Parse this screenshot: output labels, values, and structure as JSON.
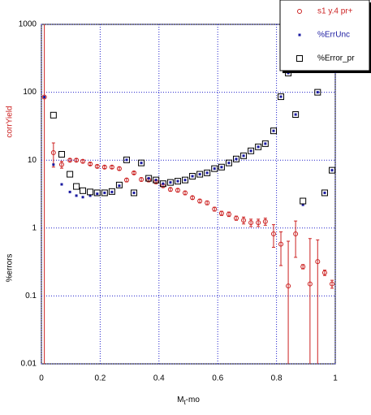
{
  "chart_data": {
    "type": "scatter",
    "xlabel": [
      "M",
      "t",
      "-mo"
    ],
    "ylabels": [
      {
        "text": "corrYield",
        "color": "#cc2222"
      },
      {
        "text": "%errors",
        "color": "#000000"
      }
    ],
    "x": [
      0.01,
      0.041,
      0.069,
      0.097,
      0.119,
      0.141,
      0.166,
      0.19,
      0.215,
      0.24,
      0.265,
      0.29,
      0.315,
      0.34,
      0.365,
      0.39,
      0.414,
      0.439,
      0.464,
      0.489,
      0.514,
      0.539,
      0.564,
      0.589,
      0.613,
      0.638,
      0.663,
      0.688,
      0.713,
      0.738,
      0.762,
      0.79,
      0.815,
      0.84,
      0.865,
      0.89,
      0.914,
      0.94,
      0.964,
      0.989
    ],
    "series": [
      {
        "name": "s1 y.4 pr+",
        "color": "#cc2222",
        "marker": "circle",
        "values": [
          85,
          12.9,
          8.6,
          10,
          10,
          9.6,
          8.8,
          8.1,
          7.9,
          7.9,
          7.5,
          5.1,
          6.5,
          5.2,
          5.1,
          4.8,
          4.2,
          3.7,
          3.6,
          3.3,
          2.8,
          2.5,
          2.35,
          1.9,
          1.65,
          1.6,
          1.4,
          1.3,
          1.2,
          1.2,
          1.25,
          0.82,
          0.58,
          0.14,
          0.82,
          0.27,
          0.15,
          0.32,
          0.22,
          0.15
        ],
        "errors": [
          2000,
          5,
          1,
          0.5,
          0.5,
          0.5,
          0.4,
          0.4,
          0.4,
          0.4,
          0.4,
          0.3,
          0.3,
          0.3,
          0.3,
          0.3,
          0.25,
          0.2,
          0.2,
          0.2,
          0.15,
          0.15,
          0.15,
          0.12,
          0.12,
          0.12,
          0.1,
          0.15,
          0.15,
          0.15,
          0.15,
          0.3,
          0.3,
          0.5,
          0.45,
          0.02,
          0.55,
          0.35,
          0.02,
          0.02
        ]
      },
      {
        "name": "%ErrUnc",
        "color": "#1a1aa0",
        "marker": "dot",
        "values": [
          85,
          8.6,
          4.4,
          3.4,
          3.0,
          2.85,
          3.0,
          3.2,
          3.3,
          3.4,
          4.2,
          10.1,
          3.3,
          9.1,
          5.4,
          5.1,
          4.5,
          4.7,
          4.9,
          5.1,
          5.8,
          6.2,
          6.5,
          7.5,
          7.9,
          9.1,
          10.4,
          11.6,
          13.7,
          15.7,
          17.5,
          27,
          86,
          192,
          47,
          2.2,
          null,
          100,
          3.3,
          7.1
        ]
      },
      {
        "name": "%Error_pr",
        "color": "#000000",
        "marker": "square",
        "values": [
          null,
          46,
          12.2,
          6.2,
          4.1,
          3.55,
          3.4,
          3.3,
          3.3,
          3.45,
          4.3,
          10.1,
          3.3,
          9.1,
          5.4,
          5.1,
          4.5,
          4.7,
          4.9,
          5.1,
          5.8,
          6.2,
          6.5,
          7.5,
          7.9,
          9.1,
          10.4,
          11.6,
          13.7,
          15.7,
          17.5,
          27,
          86,
          192,
          47,
          2.5,
          null,
          100,
          3.3,
          7.1
        ]
      }
    ],
    "xlim": [
      0,
      1
    ],
    "xticks": [
      0,
      0.2,
      0.4,
      0.6,
      0.8,
      1
    ],
    "ylim": [
      0.01,
      1000
    ],
    "yticks": [
      0.01,
      0.1,
      1,
      10,
      100,
      1000
    ],
    "ylog": true,
    "grid": true,
    "legend": "upper right"
  }
}
